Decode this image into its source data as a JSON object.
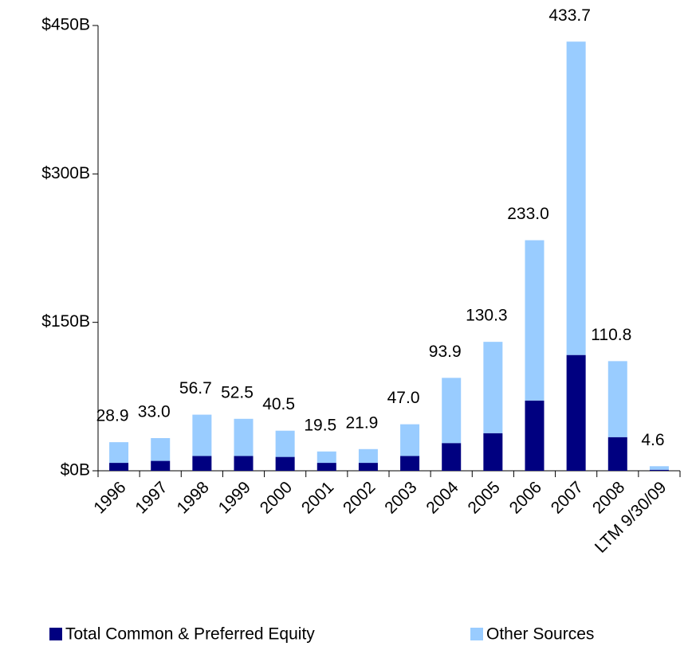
{
  "chart_data": {
    "type": "stacked_bar",
    "categories": [
      "1996",
      "1997",
      "1998",
      "1999",
      "2000",
      "2001",
      "2002",
      "2003",
      "2004",
      "2005",
      "2006",
      "2007",
      "2008",
      "LTM 9/30/09"
    ],
    "series": [
      {
        "name": "Total Common & Preferred Equity",
        "color": "#000080",
        "values": [
          8,
          10,
          15,
          15,
          14,
          8,
          8,
          15,
          28,
          38,
          71,
          117,
          34,
          1
        ]
      },
      {
        "name": "Other Sources",
        "color": "#99ccff",
        "values": [
          20.9,
          23.0,
          41.7,
          37.5,
          26.5,
          11.5,
          13.9,
          32.0,
          65.9,
          92.3,
          162.0,
          316.7,
          76.8,
          3.6
        ]
      }
    ],
    "total_labels": [
      "28.9",
      "33.0",
      "56.7",
      "52.5",
      "40.5",
      "19.5",
      "21.9",
      "47.0",
      "93.9",
      "130.3",
      "233.0",
      "433.7",
      "110.8",
      "4.6"
    ],
    "ylim": [
      0,
      450
    ],
    "yticks": [
      {
        "value": 0,
        "label": "$0B"
      },
      {
        "value": 150,
        "label": "$150B"
      },
      {
        "value": 300,
        "label": "$300B"
      },
      {
        "value": 450,
        "label": "$450B"
      }
    ],
    "grid": false
  }
}
